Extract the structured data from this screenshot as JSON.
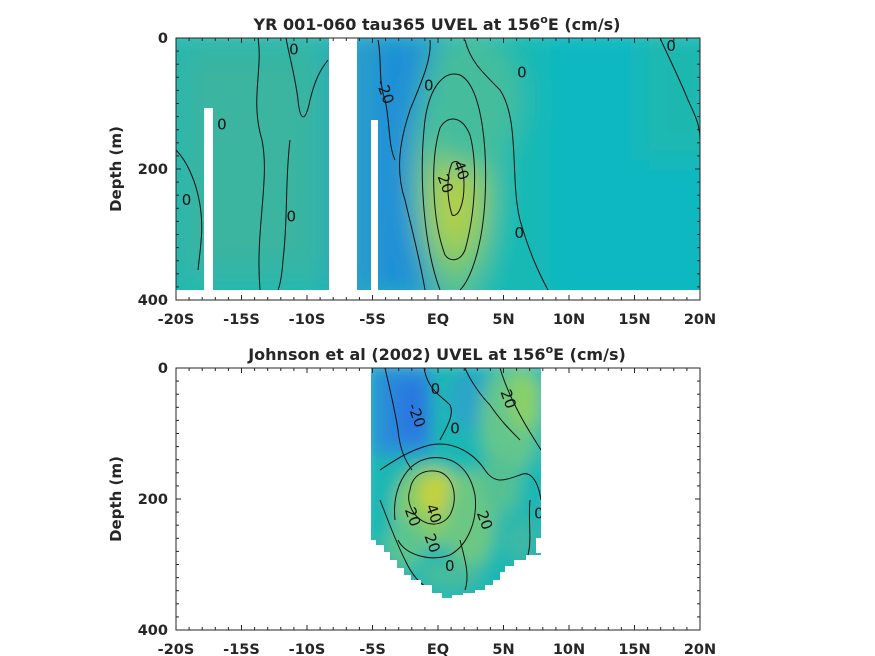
{
  "chart_data": [
    {
      "type": "heatmap",
      "title": "YR 001-060 tau365 UVEL at 156",
      "title_sup": "o",
      "title_tail": "E (cm/s)",
      "ylabel": "Depth (m)",
      "x_ticks": [
        "-20S",
        "-15S",
        "-10S",
        "-5S",
        "EQ",
        "5N",
        "10N",
        "15N",
        "20N"
      ],
      "y_ticks": [
        "0",
        "200",
        "400"
      ],
      "xlim": [
        -20,
        20
      ],
      "ylim": [
        0,
        400
      ],
      "contour_labels": [
        {
          "text": "0",
          "x": -11,
          "y": 25
        },
        {
          "text": "0",
          "x": -16.5,
          "y": 140
        },
        {
          "text": "0",
          "x": -19.2,
          "y": 255
        },
        {
          "text": "0",
          "x": -11.2,
          "y": 280
        },
        {
          "text": "-20",
          "x": -4.4,
          "y": 85
        },
        {
          "text": "0",
          "x": -0.7,
          "y": 80
        },
        {
          "text": "0",
          "x": 6.4,
          "y": 60
        },
        {
          "text": "0",
          "x": 17.8,
          "y": 20
        },
        {
          "text": "40",
          "x": 1.4,
          "y": 205
        },
        {
          "text": "20",
          "x": 0.2,
          "y": 225
        },
        {
          "text": "0",
          "x": 6.2,
          "y": 305
        }
      ],
      "max_value": 40
    },
    {
      "type": "heatmap",
      "title": "Johnson et al (2002) UVEL at 156",
      "title_sup": "o",
      "title_tail": "E (cm/s)",
      "ylabel": "Depth (m)",
      "x_ticks": [
        "-20S",
        "-15S",
        "-10S",
        "-5S",
        "EQ",
        "5N",
        "10N",
        "15N",
        "20N"
      ],
      "y_ticks": [
        "0",
        "200",
        "400"
      ],
      "xlim": [
        -20,
        20
      ],
      "ylim": [
        0,
        400
      ],
      "contour_labels": [
        {
          "text": "0",
          "x": -0.2,
          "y": 40
        },
        {
          "text": "-20",
          "x": -2.0,
          "y": 75
        },
        {
          "text": "0",
          "x": 1.3,
          "y": 100
        },
        {
          "text": "20",
          "x": 5.0,
          "y": 50
        },
        {
          "text": "40",
          "x": -0.7,
          "y": 225
        },
        {
          "text": "20",
          "x": -2.3,
          "y": 230
        },
        {
          "text": "20",
          "x": -0.8,
          "y": 270
        },
        {
          "text": "20",
          "x": 3.2,
          "y": 235
        },
        {
          "text": "0",
          "x": 7.7,
          "y": 230
        },
        {
          "text": "0",
          "x": 0.9,
          "y": 310
        }
      ],
      "data_coverage": {
        "lon_range": [
          -5,
          8
        ],
        "max_depth": 350
      },
      "max_value": 40
    }
  ]
}
